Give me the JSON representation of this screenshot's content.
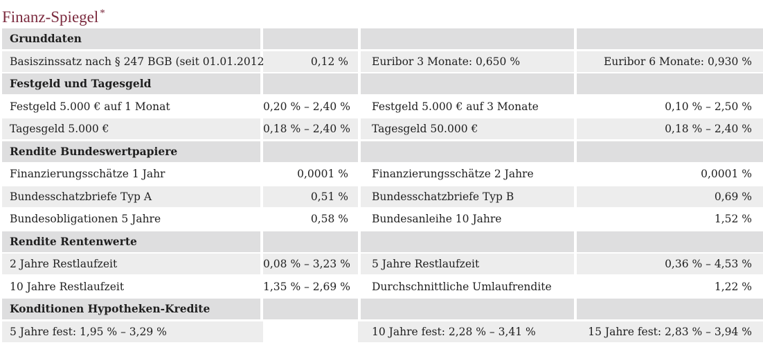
{
  "title": "Finanz-Spiegel",
  "title_marker": "*",
  "colors": {
    "title": "#7b2a3e",
    "section_bg": "#dededf",
    "stripe_bg": "#ededed"
  },
  "table": {
    "sections": [
      {
        "heading": "Grunddaten",
        "rows": [
          [
            "Basiszinssatz nach § 247 BGB (seit 01.01.2012)",
            "0,12 %",
            "Euribor 3 Monate: 0,650 %",
            "Euribor 6 Monate: 0,930 %"
          ]
        ]
      },
      {
        "heading": "Festgeld und Tagesgeld",
        "rows": [
          [
            "Festgeld 5.000 € auf 1 Monat",
            "0,20 % – 2,40 %",
            "Festgeld 5.000 € auf 3 Monate",
            "0,10 % – 2,50 %"
          ],
          [
            "Tagesgeld 5.000 €",
            "0,18 % – 2,40 %",
            "Tagesgeld 50.000 €",
            "0,18 % – 2,40 %"
          ]
        ]
      },
      {
        "heading": "Rendite Bundeswertpapiere",
        "rows": [
          [
            "Finanzierungsschätze 1 Jahr",
            "0,0001 %",
            "Finanzierungsschätze 2 Jahre",
            "0,0001 %"
          ],
          [
            "Bundesschatzbriefe Typ A",
            "0,51 %",
            "Bundesschatzbriefe Typ B",
            "0,69 %"
          ],
          [
            "Bundesobligationen 5 Jahre",
            "0,58 %",
            "Bundesanleihe 10 Jahre",
            "1,52 %"
          ]
        ]
      },
      {
        "heading": "Rendite Rentenwerte",
        "rows": [
          [
            "2 Jahre Restlaufzeit",
            "0,08 % – 3,23 %",
            "5 Jahre Restlaufzeit",
            "0,36 % – 4,53 %"
          ],
          [
            "10 Jahre Restlaufzeit",
            "1,35 % – 2,69 %",
            "Durchschnittliche Umlaufrendite",
            "1,22 %"
          ]
        ]
      },
      {
        "heading": "Konditionen Hypotheken-Kredite",
        "rows": [
          [
            "5 Jahre fest: 1,95 % – 3,29 %",
            "",
            "10 Jahre fest: 2,28 % – 3,41 %",
            "15 Jahre fest: 2,83 % – 3,94 %"
          ]
        ]
      }
    ]
  }
}
